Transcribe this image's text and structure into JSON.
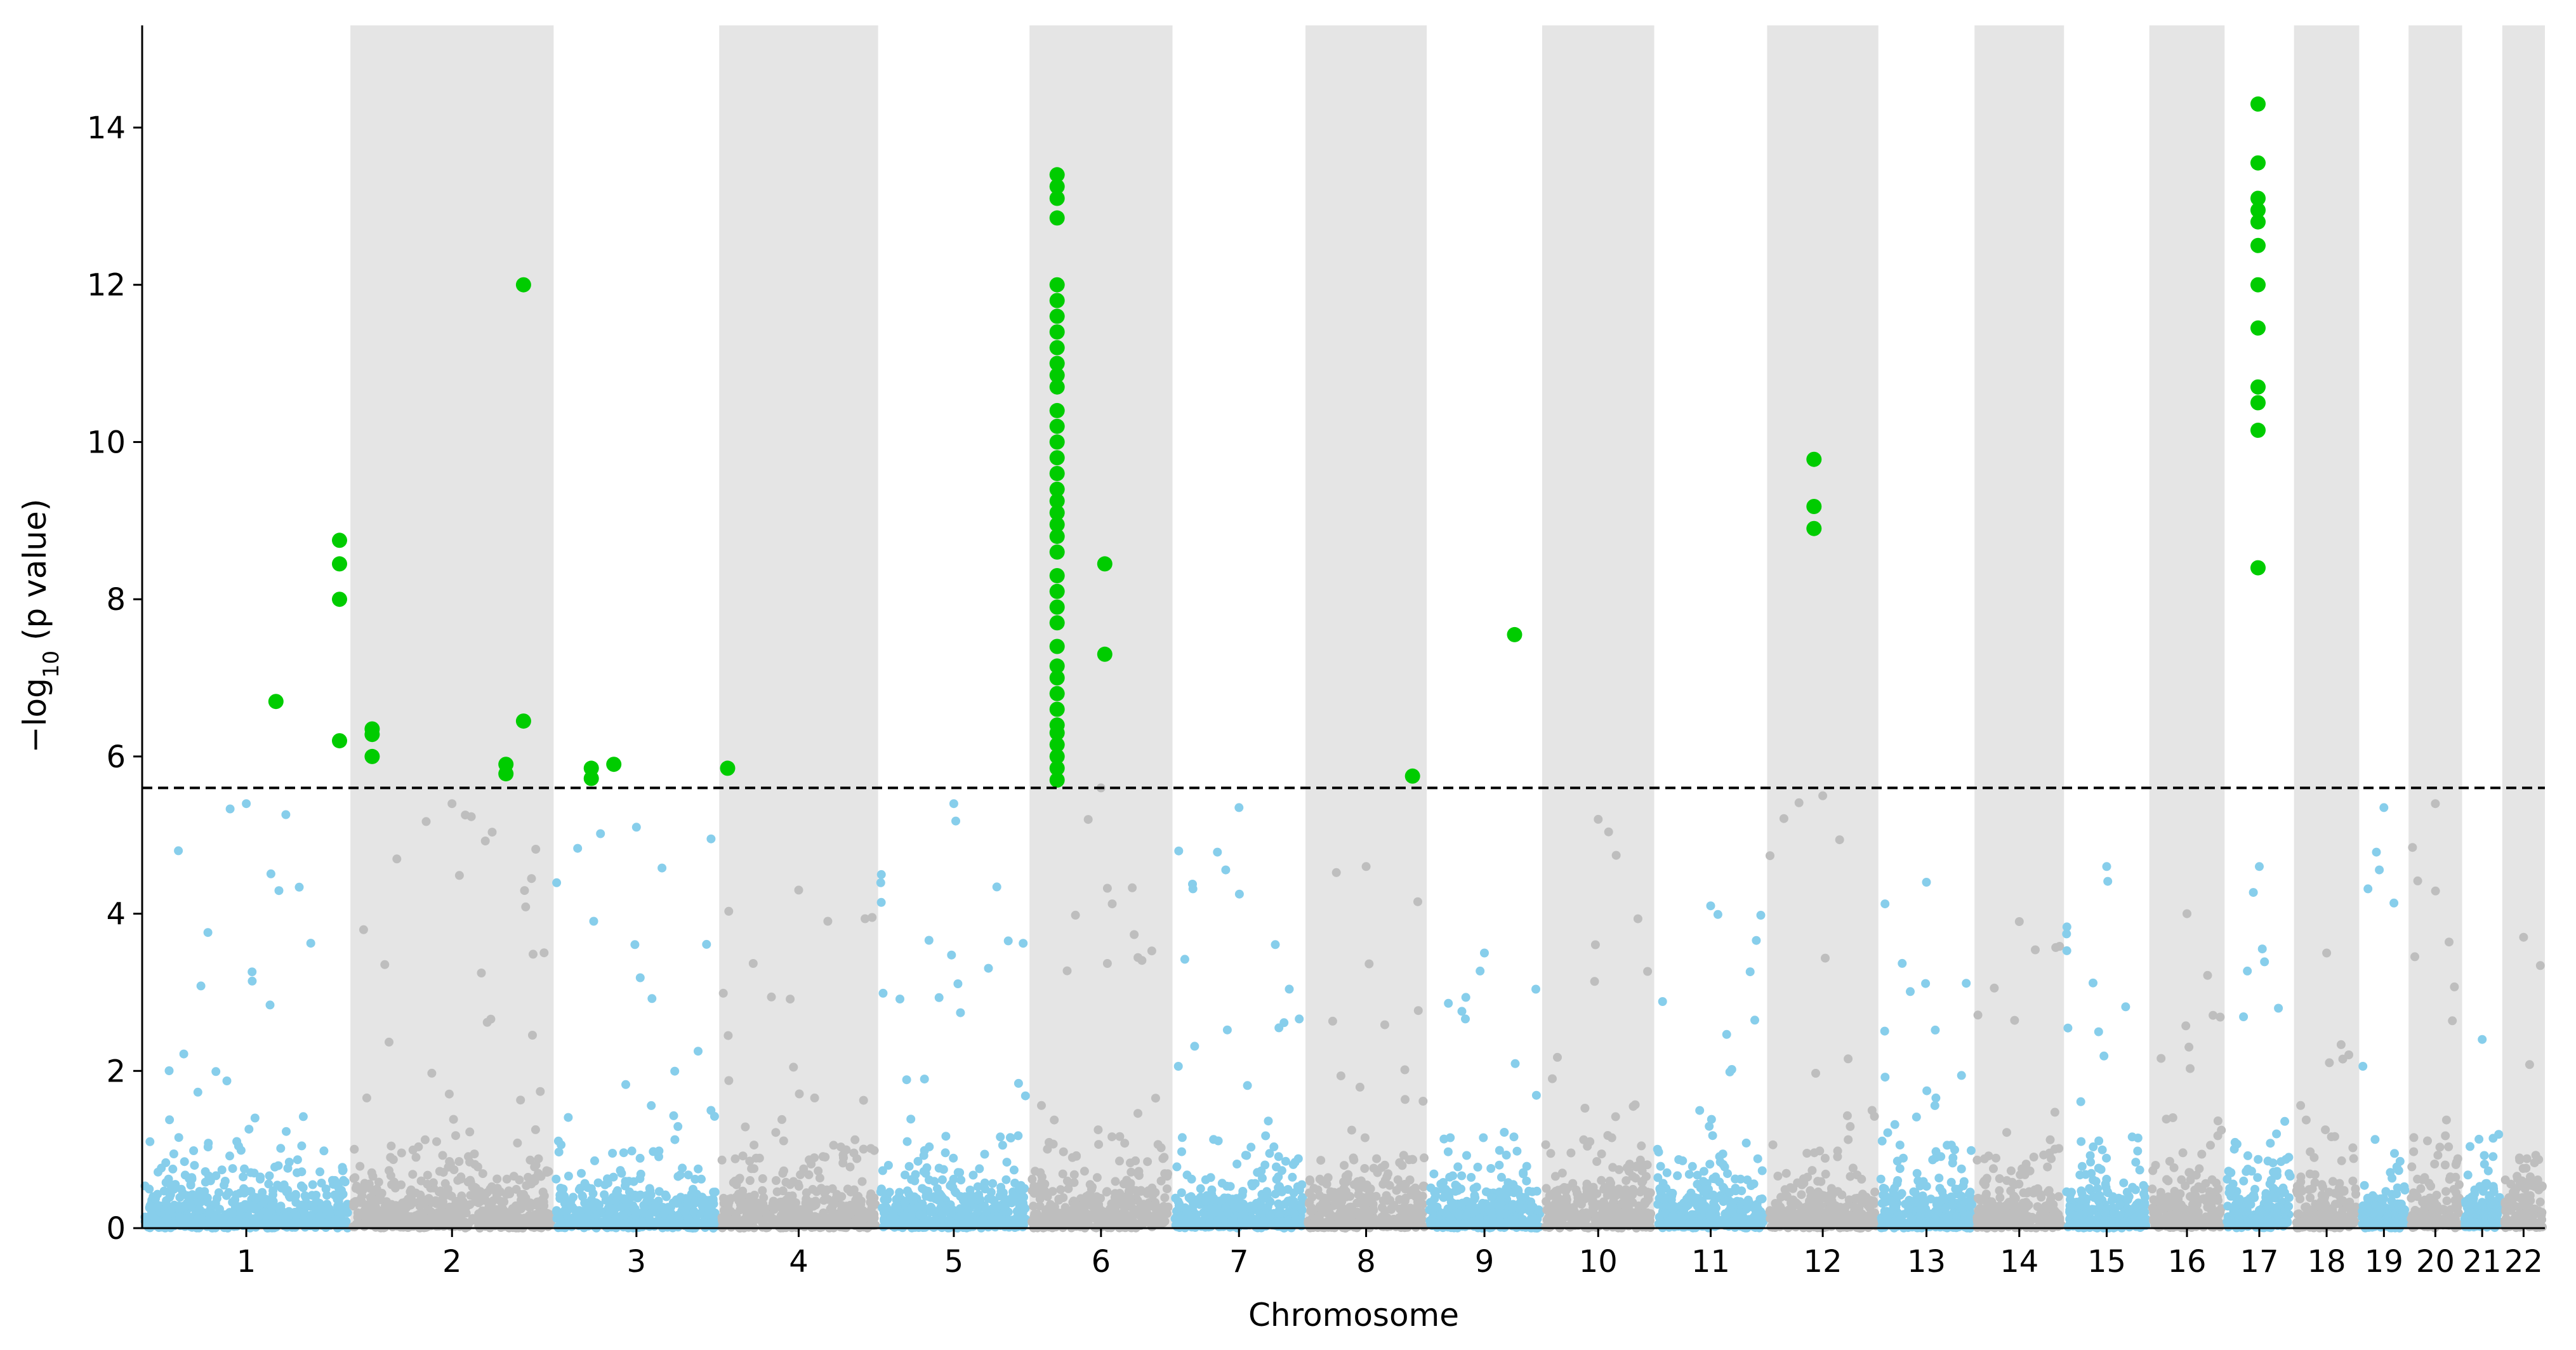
{
  "chart_data": {
    "type": "scatter",
    "subtype": "manhattan",
    "title": "",
    "xlabel": "Chromosome",
    "ylabel_main": "−log",
    "ylabel_sub": "10",
    "ylabel_tail": " (p value)",
    "ylim": [
      0,
      15.3
    ],
    "yticks": [
      0,
      2,
      4,
      6,
      8,
      10,
      12,
      14
    ],
    "significance_threshold": 5.6,
    "colors": {
      "odd_chromosome": "#87ceeb",
      "even_chromosome": "#bebebe",
      "significant": "#00cc00",
      "band": "#e5e5e5",
      "threshold_line": "#000000"
    },
    "chromosomes": [
      {
        "label": "1",
        "start": 0,
        "end": 249,
        "max_bg": 5.4
      },
      {
        "label": "2",
        "start": 249,
        "end": 492,
        "max_bg": 5.4
      },
      {
        "label": "3",
        "start": 492,
        "end": 690,
        "max_bg": 5.1
      },
      {
        "label": "4",
        "start": 690,
        "end": 880,
        "max_bg": 4.3
      },
      {
        "label": "5",
        "start": 880,
        "end": 1061,
        "max_bg": 5.4
      },
      {
        "label": "6",
        "start": 1061,
        "end": 1232,
        "max_bg": 5.6
      },
      {
        "label": "7",
        "start": 1232,
        "end": 1391,
        "max_bg": 5.35
      },
      {
        "label": "8",
        "start": 1391,
        "end": 1536,
        "max_bg": 4.6
      },
      {
        "label": "9",
        "start": 1536,
        "end": 1674,
        "max_bg": 3.5
      },
      {
        "label": "10",
        "start": 1674,
        "end": 1808,
        "max_bg": 5.2
      },
      {
        "label": "11",
        "start": 1808,
        "end": 1943,
        "max_bg": 4.1
      },
      {
        "label": "12",
        "start": 1943,
        "end": 2076,
        "max_bg": 5.5
      },
      {
        "label": "13",
        "start": 2076,
        "end": 2191,
        "max_bg": 4.4
      },
      {
        "label": "14",
        "start": 2191,
        "end": 2298,
        "max_bg": 3.9
      },
      {
        "label": "15",
        "start": 2298,
        "end": 2400,
        "max_bg": 4.6
      },
      {
        "label": "16",
        "start": 2400,
        "end": 2490,
        "max_bg": 4.0
      },
      {
        "label": "17",
        "start": 2490,
        "end": 2573,
        "max_bg": 4.6
      },
      {
        "label": "18",
        "start": 2573,
        "end": 2651,
        "max_bg": 3.5
      },
      {
        "label": "19",
        "start": 2651,
        "end": 2710,
        "max_bg": 5.35
      },
      {
        "label": "20",
        "start": 2710,
        "end": 2774,
        "max_bg": 5.4
      },
      {
        "label": "21",
        "start": 2774,
        "end": 2822,
        "max_bg": 2.4
      },
      {
        "label": "22",
        "start": 2822,
        "end": 2873,
        "max_bg": 3.7
      }
    ],
    "significant_points": [
      {
        "chr": "1",
        "pos": 160,
        "y": [
          6.7
        ]
      },
      {
        "chr": "1",
        "pos": 236,
        "y": [
          8.75,
          8.45,
          8.0,
          6.2
        ]
      },
      {
        "chr": "2",
        "pos": 26,
        "y": [
          6.35,
          6.28,
          6.0
        ]
      },
      {
        "chr": "2",
        "pos": 186,
        "y": [
          5.9,
          5.78
        ]
      },
      {
        "chr": "2",
        "pos": 207,
        "y": [
          12.0,
          6.45
        ]
      },
      {
        "chr": "3",
        "pos": 45,
        "y": [
          5.85,
          5.72
        ]
      },
      {
        "chr": "3",
        "pos": 72,
        "y": [
          5.9
        ]
      },
      {
        "chr": "4",
        "pos": 10,
        "y": [
          5.85
        ]
      },
      {
        "chr": "6",
        "pos": 33,
        "y": [
          13.4,
          13.25,
          13.1,
          12.85,
          12.0,
          11.8,
          11.6,
          11.4,
          11.2,
          11.0,
          10.85,
          10.7,
          10.4,
          10.2,
          10.0,
          9.8,
          9.6,
          9.4,
          9.25,
          9.1,
          8.95,
          8.8,
          8.6,
          8.3,
          8.1,
          7.9,
          7.7,
          7.4,
          7.15,
          7.0,
          6.8,
          6.6,
          6.4,
          6.3,
          6.15,
          6.0,
          5.85,
          5.7
        ]
      },
      {
        "chr": "6",
        "pos": 90,
        "y": [
          8.45,
          7.3
        ]
      },
      {
        "chr": "8",
        "pos": 128,
        "y": [
          5.75
        ]
      },
      {
        "chr": "9",
        "pos": 105,
        "y": [
          7.55
        ]
      },
      {
        "chr": "12",
        "pos": 56,
        "y": [
          9.78,
          9.18,
          8.9
        ]
      },
      {
        "chr": "17",
        "pos": 40,
        "y": [
          14.3,
          13.55,
          13.1,
          12.95,
          12.8,
          12.5,
          12.0,
          11.45,
          10.7,
          10.5,
          10.15,
          8.4
        ]
      }
    ]
  }
}
